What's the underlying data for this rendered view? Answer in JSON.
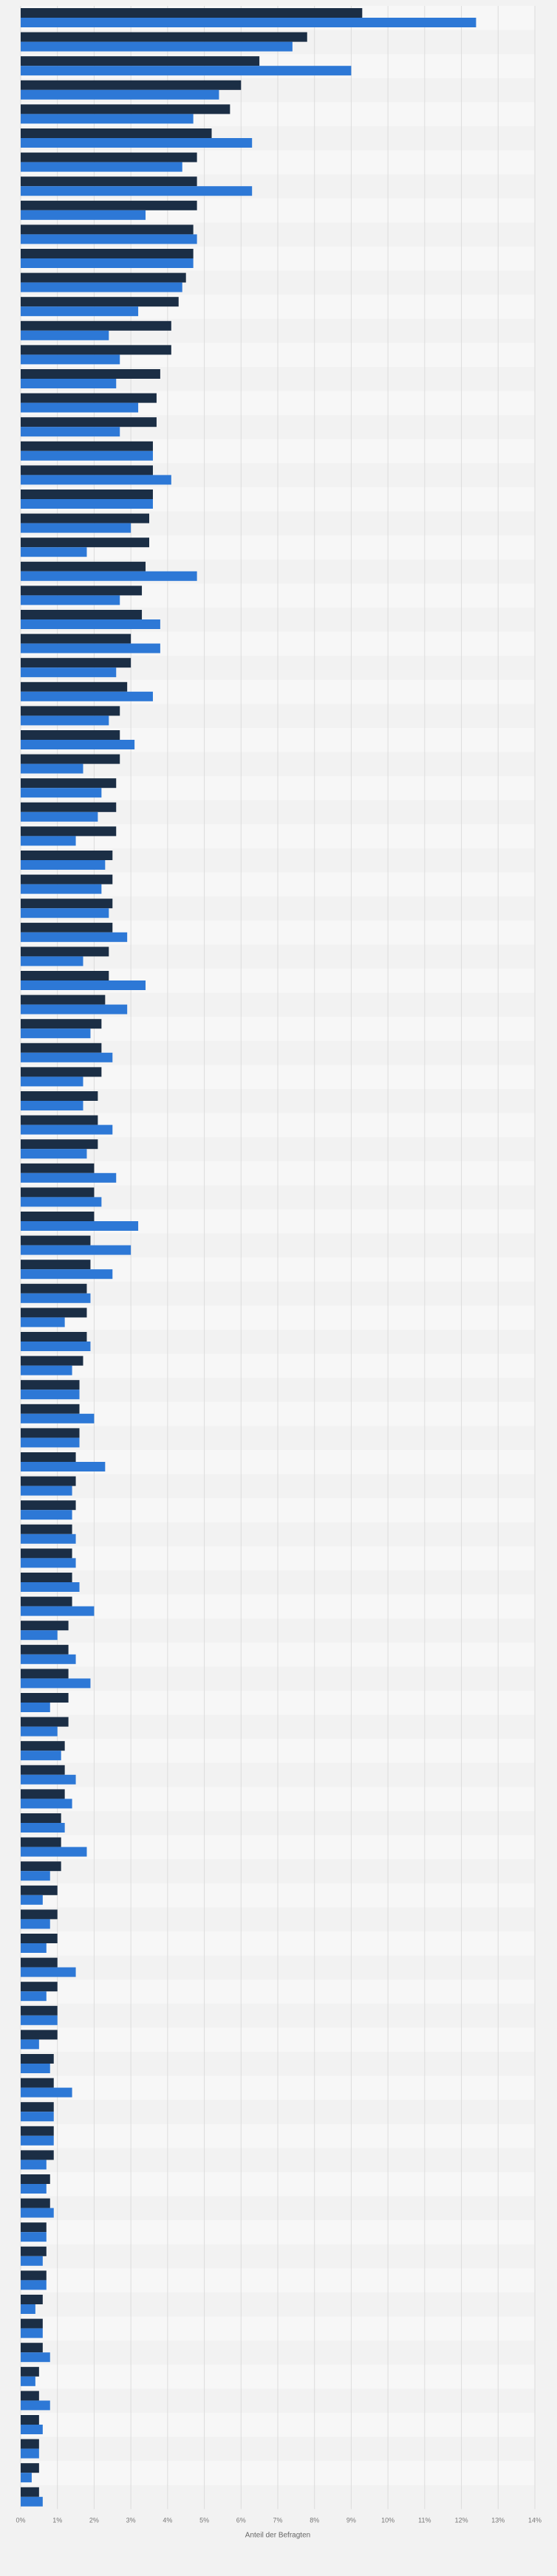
{
  "chart_data": {
    "type": "bar",
    "orientation": "horizontal",
    "xlabel": "Anteil der Befragten",
    "xlim": [
      0,
      14
    ],
    "xticks": [
      "0%",
      "1%",
      "2%",
      "3%",
      "4%",
      "5%",
      "6%",
      "7%",
      "8%",
      "9%",
      "10%",
      "11%",
      "12%",
      "13%",
      "14%"
    ],
    "grid": true,
    "legend": "none",
    "colors": {
      "series_a": "#1b2e45",
      "series_b": "#2d78d6"
    },
    "series": [
      {
        "values": [
          9.3,
          7.8,
          6.5,
          6.0,
          5.7,
          5.2,
          4.8,
          4.8,
          4.8,
          4.7,
          4.7,
          4.5,
          4.3,
          4.1,
          4.1,
          3.8,
          3.7,
          3.7,
          3.6,
          3.6,
          3.6,
          3.5,
          3.5,
          3.4,
          3.3,
          3.3,
          3.0,
          3.0,
          2.9,
          2.7,
          2.7,
          2.7,
          2.6,
          2.6,
          2.6,
          2.5,
          2.5,
          2.5,
          2.5,
          2.4,
          2.4,
          2.3,
          2.2,
          2.2,
          2.2,
          2.1,
          2.1,
          2.1,
          2.0,
          2.0,
          2.0,
          1.9,
          1.9,
          1.8,
          1.8,
          1.8,
          1.7,
          1.6,
          1.6,
          1.6,
          1.5,
          1.5,
          1.5,
          1.4,
          1.4,
          1.4,
          1.4,
          1.3,
          1.3,
          1.3,
          1.3,
          1.3,
          1.2,
          1.2,
          1.2,
          1.1,
          1.1,
          1.1,
          1.0,
          1.0,
          1.0,
          1.0,
          1.0,
          1.0,
          1.0,
          0.9,
          0.9,
          0.9,
          0.9,
          0.9,
          0.8,
          0.8,
          0.7,
          0.7,
          0.7,
          0.6,
          0.6,
          0.6,
          0.5,
          0.5,
          0.5,
          0.5,
          0.5,
          0.5
        ]
      },
      {
        "values": [
          12.4,
          7.4,
          9.0,
          5.4,
          4.7,
          6.3,
          4.4,
          6.3,
          3.4,
          4.8,
          4.7,
          4.4,
          3.2,
          2.4,
          2.7,
          2.6,
          3.2,
          2.7,
          3.6,
          4.1,
          3.6,
          3.0,
          1.8,
          4.8,
          2.7,
          3.8,
          3.8,
          2.6,
          3.6,
          2.4,
          3.1,
          1.7,
          2.2,
          2.1,
          1.5,
          2.3,
          2.2,
          2.4,
          2.9,
          1.7,
          3.4,
          2.9,
          1.9,
          2.5,
          1.7,
          1.7,
          2.5,
          1.8,
          2.6,
          2.2,
          3.2,
          3.0,
          2.5,
          1.9,
          1.2,
          1.9,
          1.4,
          1.6,
          2.0,
          1.6,
          2.3,
          1.4,
          1.4,
          1.5,
          1.5,
          1.6,
          2.0,
          1.0,
          1.5,
          1.9,
          0.8,
          1.0,
          1.1,
          1.5,
          1.4,
          1.2,
          1.8,
          0.8,
          0.6,
          0.8,
          0.7,
          1.5,
          0.7,
          1.0,
          0.5,
          0.8,
          1.4,
          0.9,
          0.9,
          0.7,
          0.7,
          0.9,
          0.7,
          0.6,
          0.7,
          0.4,
          0.6,
          0.8,
          0.4,
          0.8,
          0.6,
          0.5,
          0.3,
          0.6
        ]
      }
    ]
  }
}
